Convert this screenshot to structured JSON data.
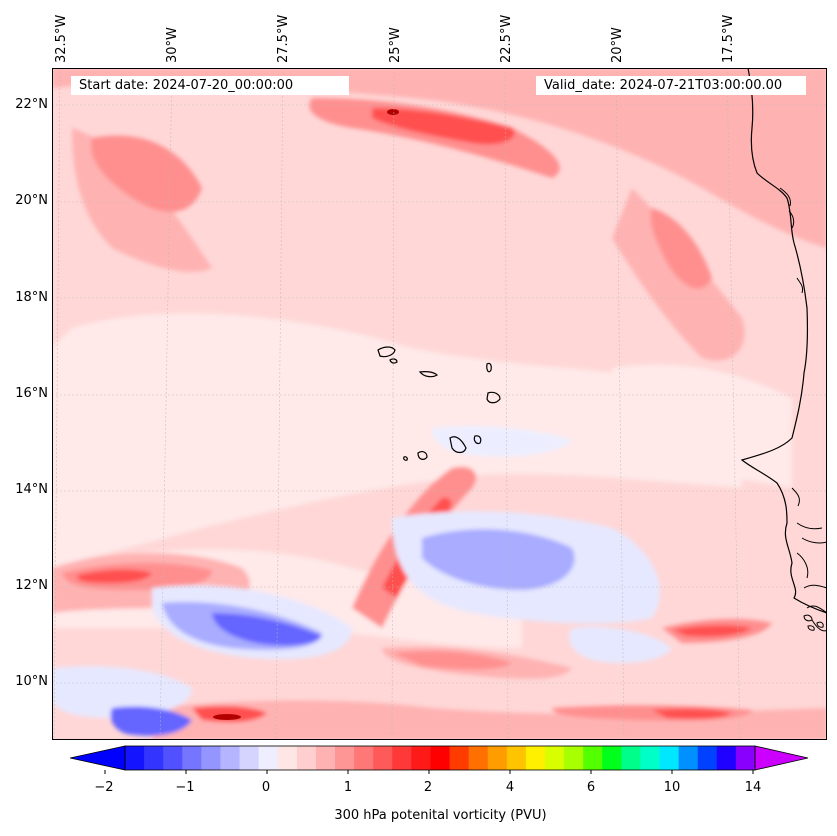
{
  "header": {
    "start_date": "Start date: 2024-07-20_00:00:00",
    "valid_date": "Valid_date: 2024-07-21T03:00:00.00"
  },
  "map": {
    "lon_labels": [
      "32.5°W",
      "30°W",
      "27.5°W",
      "25°W",
      "22.5°W",
      "20°W",
      "17.5°W"
    ],
    "lat_labels": [
      "22°N",
      "20°N",
      "18°N",
      "16°N",
      "14°N",
      "12°N",
      "10°N"
    ],
    "field_colors": {
      "base": "#ffd7d7",
      "light": "#ffe9e9",
      "medium": "#ffb2b2",
      "strong": "#ff8f8f",
      "intense": "#ff5050",
      "peak": "#ff2020",
      "blue_light": "#e6e8ff",
      "blue_mid": "#a9acff",
      "blue_strong": "#6565ff"
    }
  },
  "colorbar": {
    "tick_labels": [
      "−2",
      "−1",
      "0",
      "1",
      "2",
      "4",
      "6",
      "10",
      "14"
    ],
    "label": "300 hPa potenital vorticity (PVU)",
    "colors": [
      "#1414ff",
      "#3434ff",
      "#5151ff",
      "#7575ff",
      "#9595ff",
      "#b5b5ff",
      "#d4d4ff",
      "#eeeeff",
      "#ffe6e6",
      "#ffcece",
      "#ffb2b2",
      "#ff9696",
      "#ff7878",
      "#ff5a5a",
      "#ff3838",
      "#ff1a1a",
      "#ff0000",
      "#ff3b00",
      "#ff7000",
      "#ff9c00",
      "#ffc400",
      "#fff000",
      "#d8ff00",
      "#a8ff00",
      "#54ff00",
      "#00ff1a",
      "#00ff8a",
      "#00ffc8",
      "#00e8ff",
      "#0090ff",
      "#0040ff",
      "#2000ff",
      "#8a00ff"
    ],
    "under_color": "#0000ff",
    "over_color": "#cc00ff"
  }
}
